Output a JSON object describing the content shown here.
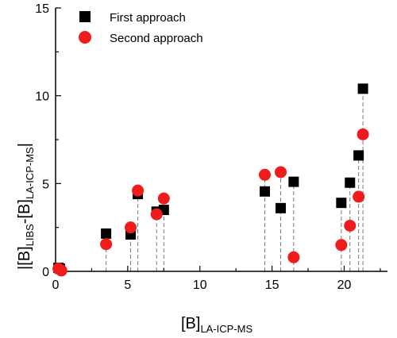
{
  "chart_data": {
    "type": "scatter",
    "xlim": [
      0,
      23
    ],
    "ylim": [
      0,
      15
    ],
    "x_ticks": [
      0,
      5,
      10,
      15,
      20
    ],
    "y_ticks": [
      0,
      5,
      10,
      15
    ],
    "xlabel": {
      "main": "[B]",
      "sub": "LA-ICP-MS"
    },
    "ylabel": {
      "p1": "|[B]",
      "sub1": "LIBS",
      "p2": "-[B]",
      "sub2": "LA-ICP-MS",
      "p3": "|"
    },
    "legend_position": "top-left",
    "series": [
      {
        "name": "First approach",
        "marker": "square",
        "color": "#000000",
        "points": [
          [
            0.2,
            0.2
          ],
          [
            0.3,
            0.15
          ],
          [
            3.5,
            2.15
          ],
          [
            5.2,
            2.1
          ],
          [
            5.7,
            4.4
          ],
          [
            7.0,
            3.4
          ],
          [
            7.5,
            3.5
          ],
          [
            14.5,
            4.55
          ],
          [
            15.6,
            3.6
          ],
          [
            16.5,
            5.1
          ],
          [
            19.8,
            3.9
          ],
          [
            20.4,
            5.05
          ],
          [
            21.0,
            6.6
          ],
          [
            21.3,
            10.4
          ]
        ]
      },
      {
        "name": "Second approach",
        "marker": "circle",
        "color": "#ee1c1c",
        "points": [
          [
            0.2,
            0.15
          ],
          [
            0.4,
            0.05
          ],
          [
            3.5,
            1.55
          ],
          [
            5.2,
            2.5
          ],
          [
            5.7,
            4.6
          ],
          [
            7.0,
            3.25
          ],
          [
            7.5,
            4.15
          ],
          [
            14.5,
            5.5
          ],
          [
            15.6,
            5.65
          ],
          [
            16.5,
            0.8
          ],
          [
            19.8,
            1.5
          ],
          [
            20.4,
            2.6
          ],
          [
            21.0,
            4.25
          ],
          [
            21.3,
            7.8
          ]
        ]
      }
    ]
  }
}
